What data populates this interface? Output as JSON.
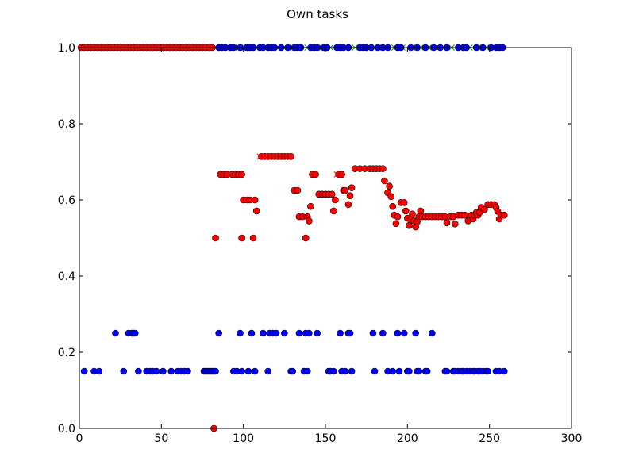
{
  "chart_data": {
    "type": "scatter",
    "title": "Own tasks",
    "xlabel": "",
    "ylabel": "",
    "xlim": [
      0,
      300
    ],
    "ylim": [
      0.0,
      1.0
    ],
    "xticks": [
      0,
      50,
      100,
      150,
      200,
      250,
      300
    ],
    "xtick_labels": [
      "0",
      "50",
      "100",
      "150",
      "200",
      "250",
      "300"
    ],
    "yticks": [
      0.0,
      0.2,
      0.4,
      0.6,
      0.8,
      1.0
    ],
    "ytick_labels": [
      "0.0",
      "0.2",
      "0.4",
      "0.6",
      "0.8",
      "1.0"
    ],
    "grid": false,
    "legend": "none",
    "colors": {
      "blue": "#0000ff",
      "red": "#ff0000",
      "green": "#00a000"
    },
    "series": [
      {
        "marker": "circle",
        "color": "#0000ff",
        "x": [
          3,
          9,
          12,
          22,
          27,
          30,
          32,
          33,
          34,
          36,
          41,
          43,
          45,
          47,
          51,
          56,
          60,
          62,
          64,
          66,
          76,
          77,
          78,
          79,
          80,
          81,
          82,
          83,
          85,
          94,
          96,
          98,
          99,
          103,
          105,
          107,
          112,
          115,
          116,
          118,
          120,
          125,
          129,
          130,
          134,
          137,
          138,
          139,
          140,
          145,
          152,
          153,
          155,
          159,
          160,
          162,
          164,
          165,
          166,
          179,
          180,
          185,
          188,
          191,
          194,
          195,
          198,
          200,
          201,
          205,
          206,
          207,
          211,
          212,
          215,
          223,
          224,
          228,
          229,
          231,
          233,
          234,
          236,
          238,
          240,
          241,
          243,
          244,
          246,
          248,
          249,
          254,
          256,
          259
        ],
        "y": [
          0.15,
          0.15,
          0.15,
          0.25,
          0.15,
          0.25,
          0.25,
          0.25,
          0.25,
          0.15,
          0.15,
          0.15,
          0.15,
          0.15,
          0.15,
          0.15,
          0.15,
          0.15,
          0.15,
          0.15,
          0.15,
          0.15,
          0.15,
          0.15,
          0.15,
          0.15,
          0.15,
          0.15,
          0.25,
          0.15,
          0.15,
          0.25,
          0.15,
          0.15,
          0.25,
          0.15,
          0.25,
          0.15,
          0.25,
          0.25,
          0.25,
          0.25,
          0.15,
          0.15,
          0.25,
          0.15,
          0.25,
          0.15,
          0.25,
          0.25,
          0.15,
          0.15,
          0.15,
          0.25,
          0.15,
          0.15,
          0.25,
          0.25,
          0.15,
          0.25,
          0.15,
          0.25,
          0.15,
          0.15,
          0.25,
          0.15,
          0.25,
          0.15,
          0.15,
          0.25,
          0.15,
          0.15,
          0.15,
          0.15,
          0.25,
          0.15,
          0.15,
          0.15,
          0.15,
          0.15,
          0.15,
          0.15,
          0.15,
          0.15,
          0.15,
          0.15,
          0.15,
          0.15,
          0.15,
          0.15,
          0.15,
          0.15,
          0.15,
          0.15
        ]
      },
      {
        "marker": "circle",
        "color": "#ff0000",
        "x": [
          82,
          83,
          86,
          88,
          90,
          93,
          95,
          97,
          99,
          99,
          100,
          102,
          104,
          106,
          107,
          108,
          111,
          113,
          115,
          117,
          119,
          121,
          123,
          125,
          127,
          129,
          131,
          133,
          134,
          136,
          138,
          139,
          140,
          141,
          142,
          144,
          146,
          148,
          150,
          152,
          154,
          155,
          156,
          158,
          160,
          161,
          162,
          164,
          165,
          166,
          168,
          171,
          174,
          177,
          179,
          181,
          183,
          185,
          186,
          188,
          189,
          190,
          191,
          192,
          193,
          194,
          196,
          198,
          199,
          200,
          201,
          202,
          203,
          204,
          205,
          206,
          207,
          208,
          209,
          211,
          213,
          215,
          217,
          219,
          221,
          223,
          224,
          226,
          228,
          229,
          231,
          233,
          235,
          237,
          239,
          240,
          241,
          242,
          243,
          244,
          245,
          247,
          249,
          251,
          253,
          254,
          255,
          256,
          257,
          259
        ],
        "y": [
          0.0,
          0.5,
          0.667,
          0.667,
          0.667,
          0.667,
          0.667,
          0.667,
          0.5,
          0.667,
          0.6,
          0.6,
          0.6,
          0.5,
          0.6,
          0.571,
          0.714,
          0.714,
          0.714,
          0.714,
          0.714,
          0.714,
          0.714,
          0.714,
          0.714,
          0.714,
          0.625,
          0.625,
          0.556,
          0.556,
          0.5,
          0.556,
          0.545,
          0.583,
          0.667,
          0.667,
          0.615,
          0.615,
          0.615,
          0.615,
          0.615,
          0.571,
          0.6,
          0.667,
          0.667,
          0.625,
          0.625,
          0.588,
          0.611,
          0.632,
          0.682,
          0.682,
          0.682,
          0.682,
          0.682,
          0.682,
          0.682,
          0.682,
          0.65,
          0.619,
          0.636,
          0.609,
          0.583,
          0.56,
          0.538,
          0.556,
          0.593,
          0.593,
          0.571,
          0.552,
          0.533,
          0.548,
          0.563,
          0.545,
          0.529,
          0.543,
          0.556,
          0.571,
          0.556,
          0.556,
          0.556,
          0.556,
          0.556,
          0.556,
          0.556,
          0.556,
          0.54,
          0.556,
          0.556,
          0.537,
          0.56,
          0.56,
          0.56,
          0.545,
          0.56,
          0.55,
          0.56,
          0.567,
          0.56,
          0.567,
          0.58,
          0.575,
          0.588,
          0.588,
          0.588,
          0.58,
          0.57,
          0.55,
          0.56,
          0.56
        ]
      },
      {
        "marker": "x",
        "color": "#ff0000",
        "x": [
          110,
          112,
          114,
          143,
          157
        ],
        "y": [
          0.714,
          0.714,
          0.714,
          0.667,
          0.667
        ]
      },
      {
        "marker": "x",
        "color": "#00a000",
        "x": [
          86,
          88,
          91,
          94,
          97,
          101,
          104,
          108,
          113,
          116,
          121,
          125,
          130,
          134,
          139,
          143,
          148,
          153,
          158,
          163,
          168,
          172,
          177,
          182,
          187,
          192,
          197,
          203,
          208,
          213,
          218,
          222,
          227,
          232,
          238,
          243,
          248,
          253,
          257
        ],
        "y": [
          1,
          1,
          1,
          1,
          1,
          1,
          1,
          1,
          1,
          1,
          1,
          1,
          1,
          1,
          1,
          1,
          1,
          1,
          1,
          1,
          1,
          1,
          1,
          1,
          1,
          1,
          1,
          1,
          1,
          1,
          1,
          1,
          1,
          1,
          1,
          1,
          1,
          1,
          1
        ]
      },
      {
        "marker": "circle",
        "color": "#0000ff",
        "x": [
          85,
          87,
          89,
          92,
          94,
          98,
          102,
          104,
          106,
          110,
          112,
          115,
          117,
          119,
          123,
          127,
          131,
          133,
          135,
          141,
          143,
          145,
          149,
          151,
          157,
          159,
          161,
          164,
          171,
          173,
          175,
          178,
          182,
          185,
          188,
          194,
          196,
          202,
          206,
          211,
          216,
          220,
          224,
          231,
          234,
          236,
          242,
          246,
          251,
          254,
          256,
          258
        ],
        "y": [
          1,
          1,
          1,
          1,
          1,
          1,
          1,
          1,
          1,
          1,
          1,
          1,
          1,
          1,
          1,
          1,
          1,
          1,
          1,
          1,
          1,
          1,
          1,
          1,
          1,
          1,
          1,
          1,
          1,
          1,
          1,
          1,
          1,
          1,
          1,
          1,
          1,
          1,
          1,
          1,
          1,
          1,
          1,
          1,
          1,
          1,
          1,
          1,
          1,
          1,
          1,
          1
        ]
      },
      {
        "marker": "circle",
        "color": "#ff0000",
        "x": [
          1,
          3,
          5,
          7,
          9,
          11,
          13,
          15,
          17,
          19,
          21,
          23,
          25,
          27,
          29,
          31,
          33,
          35,
          37,
          39,
          41,
          43,
          45,
          47,
          49,
          51,
          53,
          55,
          57,
          59,
          61,
          63,
          65,
          67,
          69,
          71,
          73,
          75,
          77,
          79,
          81
        ],
        "y": [
          1,
          1,
          1,
          1,
          1,
          1,
          1,
          1,
          1,
          1,
          1,
          1,
          1,
          1,
          1,
          1,
          1,
          1,
          1,
          1,
          1,
          1,
          1,
          1,
          1,
          1,
          1,
          1,
          1,
          1,
          1,
          1,
          1,
          1,
          1,
          1,
          1,
          1,
          1,
          1,
          1
        ]
      },
      {
        "marker": "x",
        "color": "#ff0000",
        "x": [
          2,
          6,
          10,
          14,
          18,
          22,
          26,
          30,
          34,
          38,
          42,
          46,
          50,
          54,
          58,
          62,
          66,
          70,
          74,
          78,
          80
        ],
        "y": [
          1,
          1,
          1,
          1,
          1,
          1,
          1,
          1,
          1,
          1,
          1,
          1,
          1,
          1,
          1,
          1,
          1,
          1,
          1,
          1,
          1
        ]
      }
    ]
  }
}
